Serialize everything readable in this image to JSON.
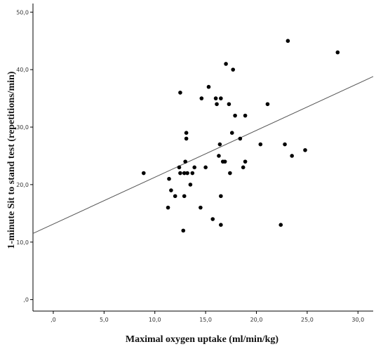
{
  "chart_data": {
    "type": "scatter",
    "xlabel": "Maximal oxygen uptake (ml/min/kg)",
    "ylabel": "1-minute Sit to stand test (repetitions/min)",
    "xlim": [
      -2.0,
      31.5
    ],
    "ylim": [
      -2.0,
      51.5
    ],
    "xticks": [
      0,
      5,
      10,
      15,
      20,
      25,
      30
    ],
    "xtick_labels": [
      ",0",
      "5,0",
      "10,0",
      "15,0",
      "20,0",
      "25,0",
      "30,0"
    ],
    "yticks": [
      0,
      10,
      20,
      30,
      40,
      50
    ],
    "ytick_labels": [
      ",0",
      "10,0",
      "20,0",
      "30,0",
      "40,0",
      "50,0"
    ],
    "grid": false,
    "series": [
      {
        "marker_color": "#000000",
        "points": [
          {
            "x": 8.9,
            "y": 22
          },
          {
            "x": 11.3,
            "y": 16
          },
          {
            "x": 11.4,
            "y": 21
          },
          {
            "x": 11.6,
            "y": 19
          },
          {
            "x": 12.0,
            "y": 18
          },
          {
            "x": 12.4,
            "y": 23
          },
          {
            "x": 12.5,
            "y": 22
          },
          {
            "x": 12.5,
            "y": 36
          },
          {
            "x": 12.8,
            "y": 12
          },
          {
            "x": 12.9,
            "y": 18
          },
          {
            "x": 12.9,
            "y": 22
          },
          {
            "x": 13.0,
            "y": 24
          },
          {
            "x": 13.1,
            "y": 28
          },
          {
            "x": 13.1,
            "y": 29
          },
          {
            "x": 13.2,
            "y": 22
          },
          {
            "x": 13.5,
            "y": 20
          },
          {
            "x": 13.7,
            "y": 22
          },
          {
            "x": 13.9,
            "y": 23
          },
          {
            "x": 14.5,
            "y": 16
          },
          {
            "x": 14.6,
            "y": 35
          },
          {
            "x": 15.0,
            "y": 23
          },
          {
            "x": 15.3,
            "y": 37
          },
          {
            "x": 15.7,
            "y": 14
          },
          {
            "x": 16.0,
            "y": 35
          },
          {
            "x": 16.1,
            "y": 34
          },
          {
            "x": 16.3,
            "y": 25
          },
          {
            "x": 16.4,
            "y": 27
          },
          {
            "x": 16.5,
            "y": 35
          },
          {
            "x": 16.5,
            "y": 18
          },
          {
            "x": 16.5,
            "y": 13
          },
          {
            "x": 16.7,
            "y": 24
          },
          {
            "x": 16.9,
            "y": 24
          },
          {
            "x": 17.0,
            "y": 41
          },
          {
            "x": 17.3,
            "y": 34
          },
          {
            "x": 17.4,
            "y": 22
          },
          {
            "x": 17.6,
            "y": 29
          },
          {
            "x": 17.7,
            "y": 40
          },
          {
            "x": 17.9,
            "y": 32
          },
          {
            "x": 18.4,
            "y": 28
          },
          {
            "x": 18.7,
            "y": 23
          },
          {
            "x": 18.9,
            "y": 24
          },
          {
            "x": 18.9,
            "y": 32
          },
          {
            "x": 20.4,
            "y": 27
          },
          {
            "x": 21.1,
            "y": 34
          },
          {
            "x": 22.4,
            "y": 13
          },
          {
            "x": 22.8,
            "y": 27
          },
          {
            "x": 23.1,
            "y": 45
          },
          {
            "x": 23.5,
            "y": 25
          },
          {
            "x": 24.8,
            "y": 26
          },
          {
            "x": 28.0,
            "y": 43
          }
        ]
      }
    ],
    "fit_line": {
      "x": [
        -2.0,
        31.5
      ],
      "y": [
        11.5,
        38.8
      ],
      "color": "#555555"
    }
  }
}
